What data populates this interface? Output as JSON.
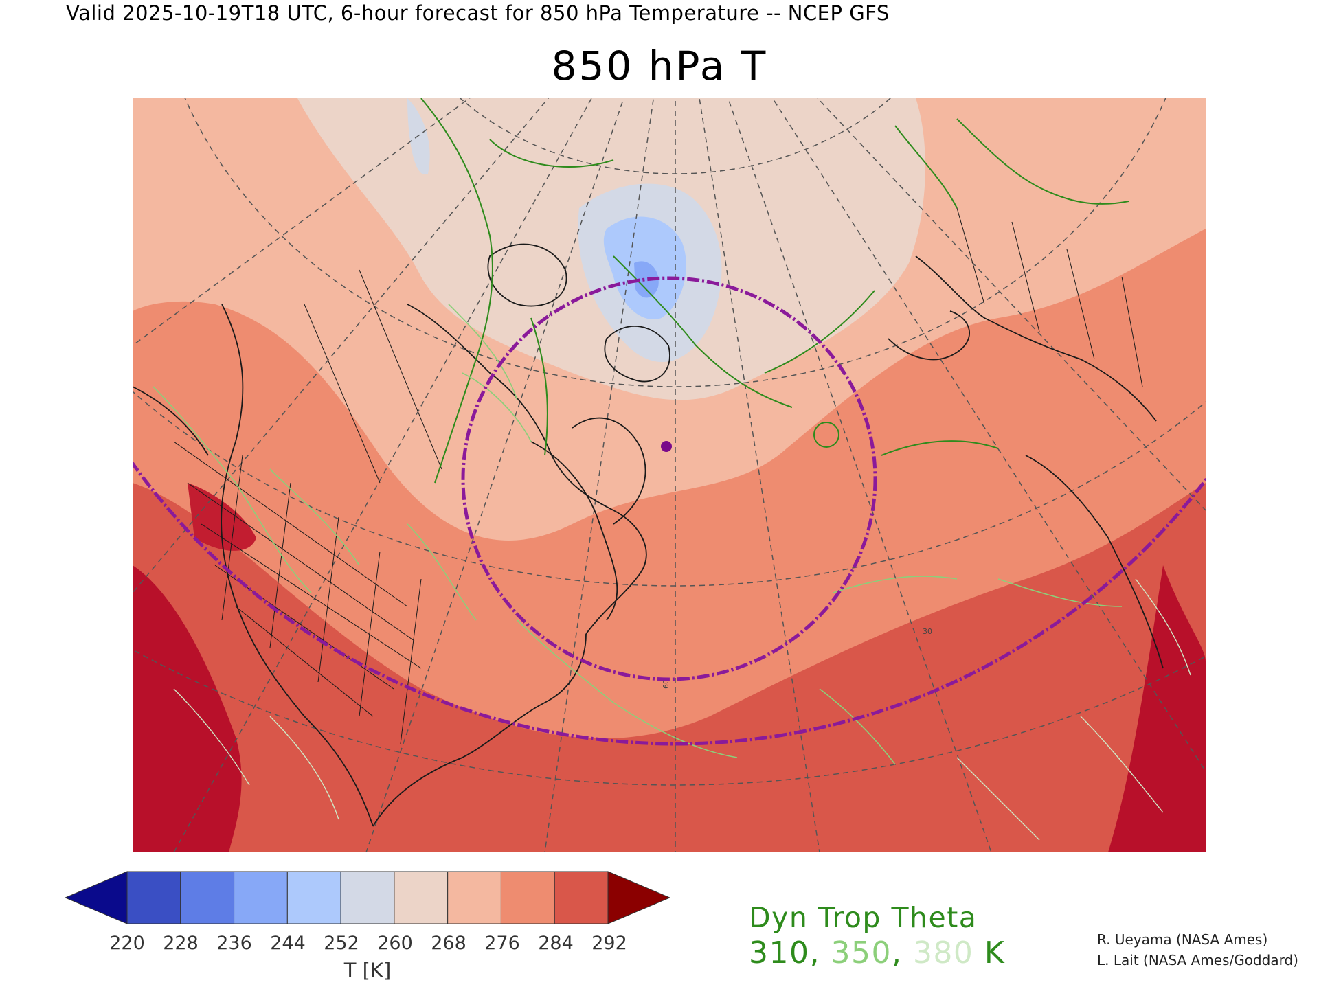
{
  "header": {
    "valid_line": "Valid 2025-10-19T18 UTC, 6-hour forecast for 850 hPa Temperature -- NCEP GFS",
    "title": "850 hPa T"
  },
  "map": {
    "region": "North America and North Atlantic, polar projection",
    "graticule_labels": [
      "60",
      "30"
    ],
    "marker_color": "#7a0a8a",
    "circle_color": "#8a1a9a"
  },
  "colorbar": {
    "unit_label": "T [K]",
    "ticks": [
      "220",
      "228",
      "236",
      "244",
      "252",
      "260",
      "268",
      "276",
      "284",
      "292"
    ],
    "under_color": "#0a0a8c",
    "over_color": "#8b0000",
    "colors": [
      "#3a4fc4",
      "#5e7de6",
      "#87a8f7",
      "#adc9fc",
      "#d3d9e6",
      "#ecd4c8",
      "#f4b8a0",
      "#ee8c70",
      "#d9574a"
    ]
  },
  "legend": {
    "title": "Dyn Trop Theta",
    "values": [
      {
        "text": "310",
        "color": "#2e8b1c"
      },
      {
        "text": "350",
        "color": "#8ccf7a"
      },
      {
        "text": "380",
        "color": "#cfe9c6"
      }
    ],
    "separator": ", ",
    "unit": " K",
    "unit_color": "#2e8b1c"
  },
  "credits": {
    "line1": "R. Ueyama (NASA Ames)",
    "line2": "L. Lait (NASA Ames/Goddard)"
  }
}
